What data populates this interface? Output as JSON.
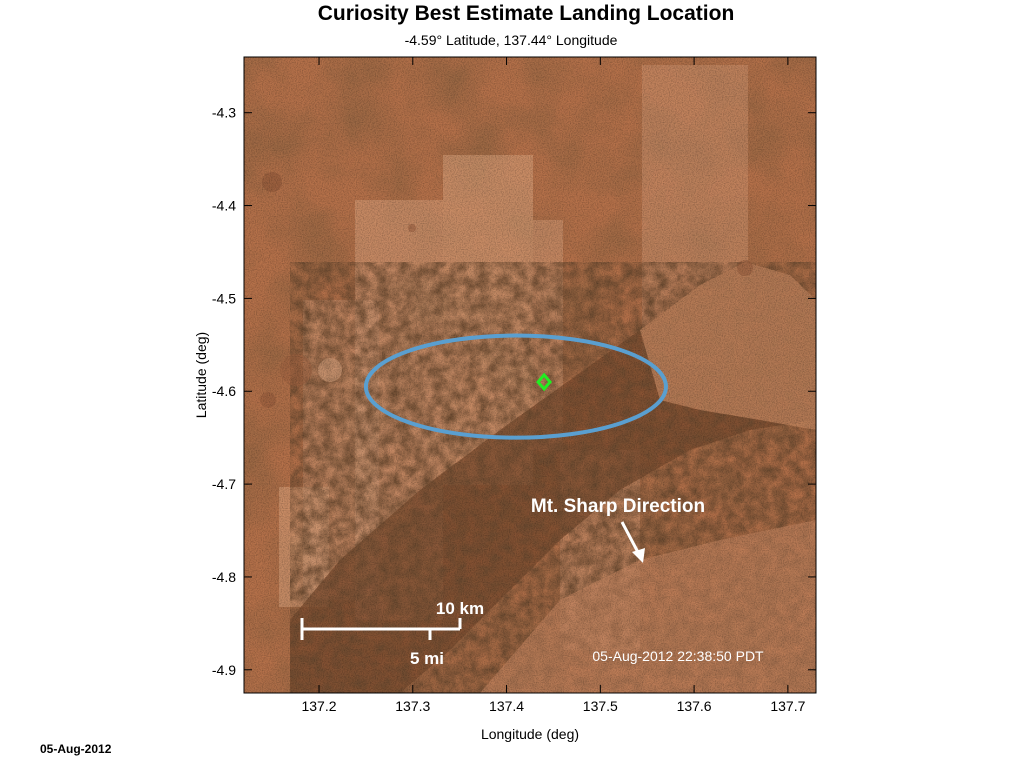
{
  "title": "Curiosity Best Estimate Landing Location",
  "subtitle": "-4.59° Latitude, 137.44° Longitude",
  "footer_date": "05-Aug-2012",
  "timestamp": "05-Aug-2012 22:38:50 PDT",
  "annotation": "Mt. Sharp Direction",
  "scale_bar": {
    "km_label": "10 km",
    "mi_label": "5 mi",
    "km": 10,
    "mi": 5
  },
  "colors": {
    "ellipse": "#5a9fd0",
    "marker": "#22ee22",
    "terrain": "#b8764a",
    "annotation": "#ffffff"
  },
  "chart_data": {
    "type": "map",
    "title": "Curiosity Best Estimate Landing Location",
    "subtitle": "-4.59° Latitude, 137.44° Longitude",
    "xlabel": "Longitude (deg)",
    "ylabel": "Latitude (deg)",
    "xlim": [
      137.12,
      137.73
    ],
    "ylim": [
      -4.925,
      -4.24
    ],
    "xticks": [
      137.2,
      137.3,
      137.4,
      137.5,
      137.6,
      137.7
    ],
    "xtick_labels": [
      "137.2",
      "137.3",
      "137.4",
      "137.5",
      "137.6",
      "137.7"
    ],
    "yticks": [
      -4.3,
      -4.4,
      -4.5,
      -4.6,
      -4.7,
      -4.8,
      -4.9
    ],
    "ytick_labels": [
      "-4.3",
      "-4.4",
      "-4.5",
      "-4.6",
      "-4.7",
      "-4.8",
      "-4.9"
    ],
    "landing_point": {
      "lon": 137.44,
      "lat": -4.59
    },
    "landing_ellipse": {
      "center_lon": 137.41,
      "center_lat": -4.595,
      "semi_axis_lon": 0.16,
      "semi_axis_lat": 0.055
    }
  }
}
